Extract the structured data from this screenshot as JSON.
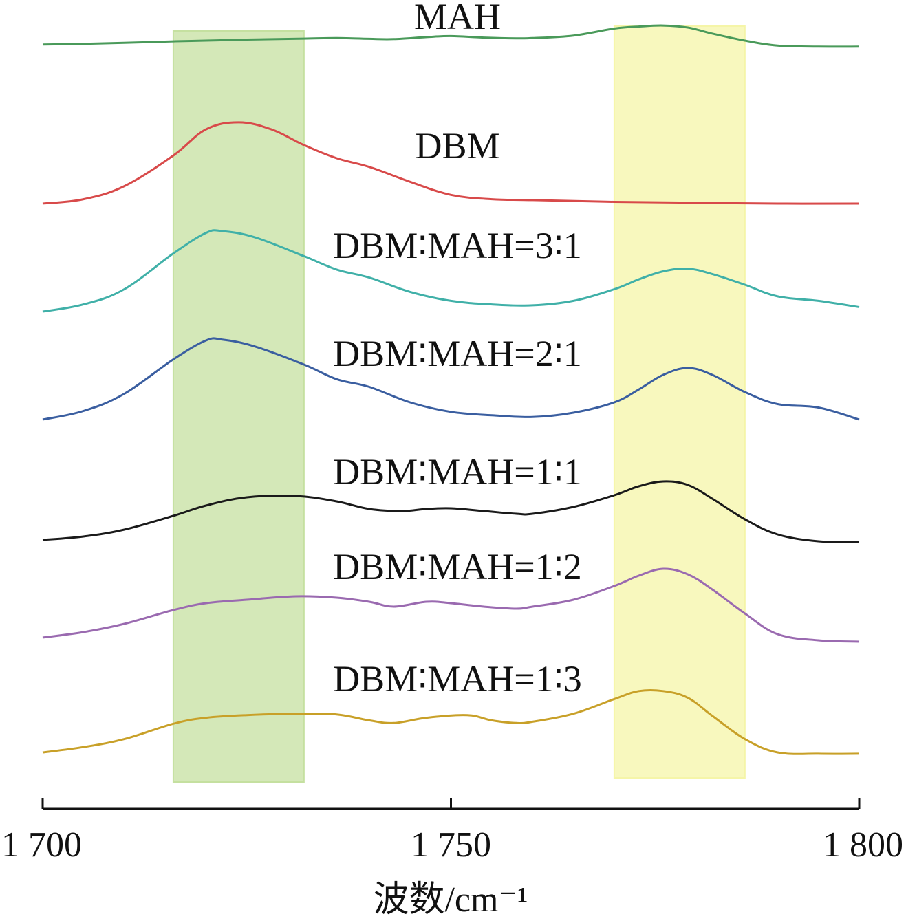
{
  "chart_data": {
    "type": "line",
    "xlabel": "波数/cm⁻¹",
    "ylabel": "",
    "xlim": [
      1700,
      1800
    ],
    "xticks": [
      1700,
      1750,
      1800
    ],
    "xtick_labels": [
      "1 700",
      "1 750",
      "1 800"
    ],
    "highlight_bands": [
      {
        "x": [
          1716,
          1732
        ],
        "color": "#c5e0a0"
      },
      {
        "x": [
          1770,
          1786
        ],
        "color": "#f5f5a8"
      }
    ],
    "series": [
      {
        "name": "MAH",
        "color": "#4a9a5a",
        "x": [
          1700,
          1705,
          1710,
          1716,
          1720,
          1725,
          1732,
          1736,
          1740,
          1743,
          1747,
          1750,
          1754,
          1758,
          1760,
          1765,
          1770,
          1773,
          1776,
          1779,
          1782,
          1786,
          1790,
          1795,
          1800
        ],
        "y": [
          0.92,
          0.935,
          0.955,
          0.985,
          1.0,
          1.02,
          1.04,
          1.05,
          1.035,
          1.03,
          1.07,
          1.09,
          1.06,
          1.045,
          1.05,
          1.1,
          1.24,
          1.28,
          1.3,
          1.26,
          1.14,
          1.0,
          0.9,
          0.88,
          0.88
        ]
      },
      {
        "name": "DBM",
        "color": "#d84a4a",
        "x": [
          1700,
          1705,
          1710,
          1716,
          1720,
          1724,
          1728,
          1732,
          1736,
          1740,
          1745,
          1750,
          1755,
          1760,
          1770,
          1780,
          1790,
          1800
        ],
        "y": [
          0.0,
          0.05,
          0.2,
          0.55,
          0.85,
          0.93,
          0.85,
          0.67,
          0.52,
          0.42,
          0.25,
          0.1,
          0.05,
          0.04,
          0.02,
          0.01,
          0.0,
          0.0
        ]
      },
      {
        "name": "DBM∶MAH=3∶1",
        "color": "#40b0a8",
        "x": [
          1700,
          1705,
          1710,
          1716,
          1720,
          1722,
          1726,
          1732,
          1736,
          1740,
          1745,
          1750,
          1755,
          1760,
          1765,
          1770,
          1773,
          1776,
          1779,
          1782,
          1786,
          1790,
          1795,
          1800
        ],
        "y": [
          0.0,
          0.08,
          0.25,
          0.65,
          0.88,
          0.9,
          0.83,
          0.62,
          0.47,
          0.38,
          0.22,
          0.12,
          0.08,
          0.07,
          0.12,
          0.25,
          0.36,
          0.45,
          0.48,
          0.42,
          0.3,
          0.17,
          0.12,
          0.05
        ]
      },
      {
        "name": "DBM∶MAH=2∶1",
        "color": "#3a5ea0",
        "x": [
          1700,
          1705,
          1710,
          1716,
          1720,
          1722,
          1726,
          1732,
          1736,
          1740,
          1745,
          1750,
          1755,
          1760,
          1765,
          1770,
          1773,
          1776,
          1779,
          1782,
          1786,
          1790,
          1795,
          1800
        ],
        "y": [
          0.0,
          0.1,
          0.3,
          0.7,
          0.92,
          0.93,
          0.85,
          0.64,
          0.47,
          0.38,
          0.2,
          0.09,
          0.05,
          0.03,
          0.08,
          0.2,
          0.35,
          0.52,
          0.6,
          0.52,
          0.32,
          0.18,
          0.14,
          0.0
        ]
      },
      {
        "name": "DBM∶MAH=1∶1",
        "color": "#1a1a1a",
        "x": [
          1700,
          1705,
          1710,
          1716,
          1720,
          1725,
          1731,
          1736,
          1740,
          1744,
          1747,
          1750,
          1754,
          1758,
          1760,
          1765,
          1770,
          1773,
          1776,
          1779,
          1782,
          1786,
          1790,
          1795,
          1800
        ],
        "y": [
          0.0,
          0.05,
          0.15,
          0.35,
          0.5,
          0.62,
          0.64,
          0.56,
          0.45,
          0.42,
          0.45,
          0.46,
          0.42,
          0.38,
          0.38,
          0.48,
          0.65,
          0.78,
          0.85,
          0.8,
          0.6,
          0.3,
          0.08,
          -0.02,
          -0.03
        ]
      },
      {
        "name": "DBM∶MAH=1∶2",
        "color": "#9a6ab0",
        "x": [
          1700,
          1705,
          1710,
          1716,
          1720,
          1725,
          1731,
          1736,
          1740,
          1743,
          1747,
          1750,
          1754,
          1758,
          1760,
          1765,
          1770,
          1773,
          1776,
          1779,
          1782,
          1786,
          1790,
          1795,
          1800
        ],
        "y": [
          0.0,
          0.08,
          0.2,
          0.4,
          0.5,
          0.55,
          0.6,
          0.58,
          0.52,
          0.45,
          0.52,
          0.5,
          0.45,
          0.42,
          0.45,
          0.55,
          0.75,
          0.9,
          1.0,
          0.92,
          0.7,
          0.35,
          0.05,
          -0.04,
          -0.06
        ]
      },
      {
        "name": "DBM∶MAH=1∶3",
        "color": "#c8a028",
        "x": [
          1700,
          1705,
          1710,
          1716,
          1720,
          1725,
          1731,
          1736,
          1740,
          1743,
          1747,
          1752,
          1755,
          1758,
          1760,
          1765,
          1770,
          1773,
          1776,
          1779,
          1782,
          1786,
          1790,
          1795,
          1800
        ],
        "y": [
          0.0,
          0.08,
          0.2,
          0.43,
          0.52,
          0.56,
          0.58,
          0.57,
          0.48,
          0.44,
          0.52,
          0.56,
          0.48,
          0.44,
          0.46,
          0.58,
          0.8,
          0.92,
          0.92,
          0.82,
          0.55,
          0.2,
          0.0,
          -0.02,
          -0.02
        ]
      }
    ]
  }
}
